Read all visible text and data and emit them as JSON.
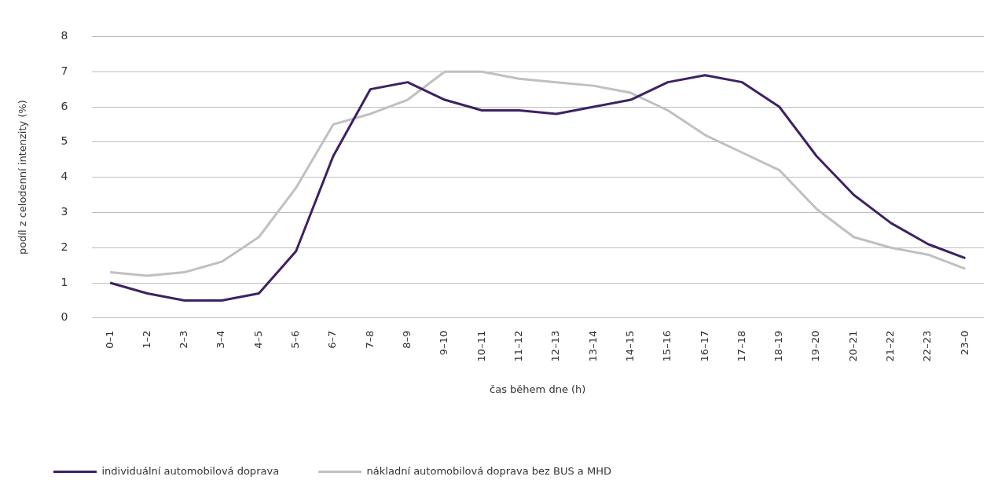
{
  "chart_data": {
    "type": "line",
    "xlabel": "čas během dne (h)",
    "ylabel": "podíl z celodenní intenzity (%)",
    "categories": [
      "0–1",
      "1–2",
      "2–3",
      "3–4",
      "4–5",
      "5–6",
      "6–7",
      "7–8",
      "8–9",
      "9–10",
      "10–11",
      "11–12",
      "12–13",
      "13–14",
      "14–15",
      "15–16",
      "16–17",
      "17–18",
      "18–19",
      "19–20",
      "20–21",
      "21–22",
      "22–23",
      "23–0"
    ],
    "series": [
      {
        "name": "individuální automobilová doprava",
        "color": "#3d2163",
        "values": [
          1.0,
          0.7,
          0.5,
          0.5,
          0.7,
          1.9,
          4.6,
          6.5,
          6.7,
          6.2,
          5.9,
          5.9,
          5.8,
          6.0,
          6.2,
          6.7,
          6.9,
          6.7,
          6.0,
          4.6,
          3.5,
          2.7,
          2.1,
          1.7
        ]
      },
      {
        "name": "nákladní automobilová doprava bez BUS a MHD",
        "color": "#c0c0c0",
        "values": [
          1.3,
          1.2,
          1.3,
          1.6,
          2.3,
          3.7,
          5.5,
          5.8,
          6.2,
          7.0,
          7.0,
          6.8,
          6.7,
          6.6,
          6.4,
          5.9,
          5.2,
          4.7,
          4.2,
          3.1,
          2.3,
          2.0,
          1.8,
          1.4
        ]
      }
    ],
    "ylim": [
      0,
      8
    ],
    "yticks": [
      0,
      1,
      2,
      3,
      4,
      5,
      6,
      7,
      8
    ],
    "grid": "y",
    "legend": "bottom",
    "marker": "none",
    "line_style": "solid"
  }
}
